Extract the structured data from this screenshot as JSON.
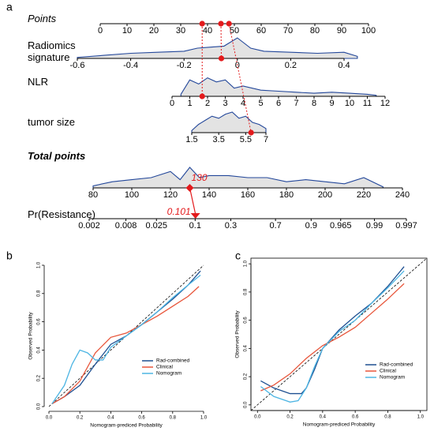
{
  "chart_data": [
    {
      "type": "nomogram",
      "panel": "a",
      "rows": [
        {
          "label": "Points",
          "xlim": [
            0,
            100
          ],
          "ticks": [
            0,
            10,
            20,
            30,
            40,
            50,
            60,
            70,
            80,
            90,
            100
          ],
          "patient_points": [
            38,
            45,
            48
          ]
        },
        {
          "label": "Radiomics signature",
          "xlim": [
            -0.6,
            0.4
          ],
          "ticks": [
            -0.6,
            -0.4,
            -0.2,
            0,
            0.2,
            0.4
          ],
          "patient_value": -0.06,
          "density": {
            "x": [
              -0.6,
              -0.5,
              -0.4,
              -0.3,
              -0.2,
              -0.15,
              -0.1,
              -0.05,
              0,
              0.05,
              0.1,
              0.2,
              0.3,
              0.4,
              0.45
            ],
            "y": [
              0.05,
              0.15,
              0.25,
              0.3,
              0.35,
              0.5,
              0.55,
              0.6,
              1.0,
              0.5,
              0.35,
              0.3,
              0.25,
              0.3,
              0.1
            ]
          }
        },
        {
          "label": "NLR",
          "xlim": [
            0,
            12
          ],
          "ticks": [
            0,
            1,
            2,
            3,
            4,
            5,
            6,
            7,
            8,
            9,
            10,
            11,
            12
          ],
          "patient_value": 1.7,
          "density": {
            "x": [
              0.5,
              1,
              1.5,
              2,
              2.5,
              3,
              3.5,
              4,
              5,
              6,
              7,
              8,
              9,
              10,
              11,
              11.5
            ],
            "y": [
              0.1,
              0.8,
              0.6,
              0.9,
              0.7,
              0.8,
              0.4,
              0.5,
              0.3,
              0.25,
              0.2,
              0.15,
              0.2,
              0.15,
              0.1,
              0.05
            ]
          }
        },
        {
          "label": "tumor size",
          "xlim": [
            1.5,
            7
          ],
          "ticks": [
            1.5,
            3.5,
            5.5,
            7
          ],
          "patient_value": 5.9,
          "density": {
            "x": [
              1.5,
              2,
              2.5,
              3,
              3.5,
              4,
              4.5,
              5,
              5.5,
              6,
              6.5,
              7
            ],
            "y": [
              0.1,
              0.4,
              0.6,
              0.8,
              0.7,
              0.9,
              1.0,
              0.7,
              0.8,
              0.5,
              0.4,
              0.2
            ]
          }
        },
        {
          "label": "Total points",
          "xlim": [
            80,
            240
          ],
          "ticks": [
            80,
            100,
            120,
            140,
            160,
            180,
            200,
            220,
            240
          ],
          "patient_value": 130,
          "density": {
            "x": [
              80,
              90,
              100,
              110,
              120,
              125,
              130,
              135,
              140,
              150,
              160,
              170,
              180,
              190,
              200,
              210,
              220,
              230
            ],
            "y": [
              0.1,
              0.3,
              0.4,
              0.5,
              0.8,
              0.4,
              1.0,
              0.5,
              0.6,
              0.6,
              0.5,
              0.5,
              0.3,
              0.4,
              0.3,
              0.2,
              0.5,
              0.05
            ]
          }
        },
        {
          "label": "Pr(Resistance)",
          "scale": "logit",
          "xlim": [
            0.002,
            0.997
          ],
          "ticks": [
            0.002,
            0.008,
            0.025,
            0.1,
            0.3,
            0.7,
            0.9,
            0.965,
            0.99,
            0.997
          ],
          "patient_value": 0.101
        }
      ]
    },
    {
      "type": "line",
      "panel": "b",
      "frame": false,
      "legend": "lower right",
      "xlabel": "Nomogram-prediced Probability",
      "ylabel": "Observed Probability",
      "xlim": [
        0,
        1
      ],
      "ylim": [
        0,
        1
      ],
      "xticks": [
        {
          "value": 0,
          "label": "0.0"
        },
        {
          "value": 0.2,
          "label": "0.2"
        },
        {
          "value": 0.4,
          "label": "0.4"
        },
        {
          "value": 0.6,
          "label": "0.6"
        },
        {
          "value": 0.8,
          "label": "0.8"
        },
        {
          "value": 1,
          "label": "1.0"
        }
      ],
      "yticks": [
        {
          "value": 0,
          "label": "0.0"
        },
        {
          "value": 0.2,
          "label": "0.2"
        },
        {
          "value": 0.4,
          "label": "0.4"
        },
        {
          "value": 0.6,
          "label": "0.6"
        },
        {
          "value": 0.8,
          "label": "0.8"
        },
        {
          "value": 1,
          "label": "1.0"
        }
      ],
      "series": [
        {
          "name": "Rad-combined",
          "color": "#1d4f91",
          "x": [
            0.02,
            0.1,
            0.2,
            0.3,
            0.4,
            0.5,
            0.6,
            0.7,
            0.8,
            0.9,
            0.98
          ],
          "values": [
            0.02,
            0.07,
            0.15,
            0.3,
            0.44,
            0.5,
            0.58,
            0.67,
            0.76,
            0.86,
            0.96
          ]
        },
        {
          "name": "Clinical",
          "color": "#e8553a",
          "x": [
            0.02,
            0.1,
            0.2,
            0.3,
            0.4,
            0.5,
            0.6,
            0.7,
            0.8,
            0.9,
            0.97
          ],
          "values": [
            0.02,
            0.07,
            0.18,
            0.38,
            0.49,
            0.52,
            0.58,
            0.64,
            0.71,
            0.78,
            0.85
          ]
        },
        {
          "name": "Nomogram",
          "color": "#4db5e3",
          "x": [
            0.02,
            0.1,
            0.15,
            0.2,
            0.25,
            0.3,
            0.35,
            0.4,
            0.5,
            0.6,
            0.7,
            0.8,
            0.9,
            0.98
          ],
          "values": [
            0.02,
            0.15,
            0.3,
            0.4,
            0.38,
            0.33,
            0.33,
            0.42,
            0.5,
            0.58,
            0.67,
            0.77,
            0.86,
            0.93
          ]
        }
      ]
    },
    {
      "type": "line",
      "panel": "c",
      "frame": true,
      "legend": "lower right",
      "xlabel": "Nomogram-prediced Probability",
      "ylabel": "Observed Probability",
      "xlim": [
        -0.04,
        1.04
      ],
      "ylim": [
        -0.04,
        1.04
      ],
      "xticks": [
        {
          "value": 0,
          "label": "0.0"
        },
        {
          "value": 0.2,
          "label": "0.2"
        },
        {
          "value": 0.4,
          "label": "0.4"
        },
        {
          "value": 0.6,
          "label": "0.6"
        },
        {
          "value": 0.8,
          "label": "0.8"
        },
        {
          "value": 1,
          "label": "1.0"
        }
      ],
      "yticks": [
        {
          "value": 0,
          "label": "0.0"
        },
        {
          "value": 0.2,
          "label": "0.2"
        },
        {
          "value": 0.4,
          "label": "0.4"
        },
        {
          "value": 0.6,
          "label": "0.6"
        },
        {
          "value": 0.8,
          "label": "0.8"
        },
        {
          "value": 1,
          "label": "1.0"
        }
      ],
      "series": [
        {
          "name": "Rad-combined",
          "color": "#1d4f91",
          "x": [
            0.02,
            0.1,
            0.2,
            0.27,
            0.3,
            0.35,
            0.4,
            0.5,
            0.6,
            0.7,
            0.8,
            0.9
          ],
          "values": [
            0.17,
            0.12,
            0.08,
            0.08,
            0.12,
            0.25,
            0.4,
            0.53,
            0.63,
            0.72,
            0.84,
            0.98
          ]
        },
        {
          "name": "Clinical",
          "color": "#e8553a",
          "x": [
            0.02,
            0.1,
            0.2,
            0.3,
            0.4,
            0.5,
            0.6,
            0.7,
            0.8,
            0.9
          ],
          "values": [
            0.1,
            0.14,
            0.22,
            0.33,
            0.42,
            0.48,
            0.55,
            0.65,
            0.75,
            0.86
          ]
        },
        {
          "name": "Nomogram",
          "color": "#4db5e3",
          "x": [
            0.02,
            0.1,
            0.2,
            0.25,
            0.3,
            0.35,
            0.4,
            0.5,
            0.6,
            0.7,
            0.8,
            0.9
          ],
          "values": [
            0.13,
            0.06,
            0.02,
            0.03,
            0.12,
            0.27,
            0.4,
            0.52,
            0.6,
            0.72,
            0.83,
            0.95
          ]
        }
      ]
    }
  ]
}
